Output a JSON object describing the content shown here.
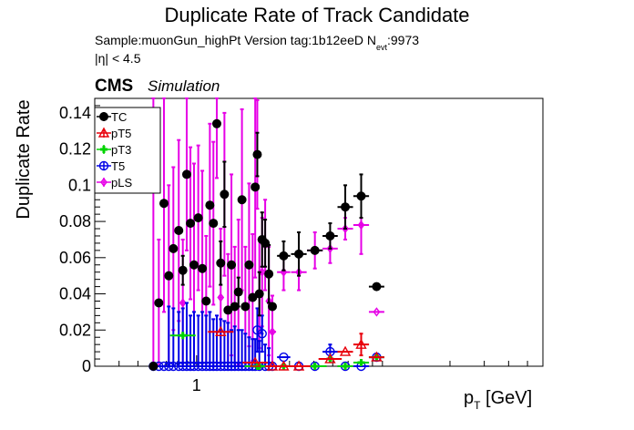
{
  "chart_data": {
    "type": "scatter",
    "title": "Duplicate Rate of Track Candidate",
    "subtitle": {
      "line1_main": "Sample:muonGun_highPt   Version tag:1b12eeD  N",
      "line1_sub": "evt",
      "line1_tail": ":9973",
      "line2": "|η| < 4.5"
    },
    "cms_label": "CMS",
    "cms_sublabel": "Simulation",
    "ylabel": "Duplicate Rate",
    "xlabel_main": "p",
    "xlabel_sub": "T",
    "xlabel_tail": " [GeV]",
    "x_scale": "log",
    "xlim": [
      0.3,
      60
    ],
    "ylim": [
      0,
      0.148
    ],
    "y_ticks": [
      0,
      0.02,
      0.04,
      0.06,
      0.08,
      0.1,
      0.12,
      0.14
    ],
    "y_tick_labels": [
      "0",
      "0.02",
      "0.04",
      "0.06",
      "0.08",
      "0.1",
      "0.12",
      "0.14"
    ],
    "x_ticks": [
      1
    ],
    "x_tick_labels": [
      "1"
    ],
    "legend_placement": "top-left",
    "colors": {
      "TC": "#000000",
      "pT5": "#e8000b",
      "pT3": "#00d400",
      "T5": "#0000e6",
      "pLS": "#e600e6"
    },
    "series": [
      {
        "name": "TC",
        "marker": "circle",
        "points": [
          {
            "x": 0.6,
            "y": 0.0,
            "err": 0.0
          },
          {
            "x": 0.64,
            "y": 0.035,
            "err": 0.0
          },
          {
            "x": 0.68,
            "y": 0.09,
            "err": 0.0
          },
          {
            "x": 0.72,
            "y": 0.05,
            "err": 0.0
          },
          {
            "x": 0.76,
            "y": 0.065,
            "err": 0.0
          },
          {
            "x": 0.81,
            "y": 0.075,
            "err": 0.0
          },
          {
            "x": 0.85,
            "y": 0.053,
            "err": 0.008
          },
          {
            "x": 0.89,
            "y": 0.106,
            "err": 0.0
          },
          {
            "x": 0.93,
            "y": 0.079,
            "err": 0.0
          },
          {
            "x": 0.97,
            "y": 0.056,
            "err": 0.0
          },
          {
            "x": 1.02,
            "y": 0.082,
            "err": 0.0
          },
          {
            "x": 1.07,
            "y": 0.054,
            "err": 0.0
          },
          {
            "x": 1.12,
            "y": 0.036,
            "err": 0.0
          },
          {
            "x": 1.17,
            "y": 0.089,
            "err": 0.0
          },
          {
            "x": 1.22,
            "y": 0.079,
            "err": 0.0
          },
          {
            "x": 1.27,
            "y": 0.134,
            "err": 0.0
          },
          {
            "x": 1.33,
            "y": 0.057,
            "err": 0.012
          },
          {
            "x": 1.39,
            "y": 0.095,
            "err": 0.018
          },
          {
            "x": 1.45,
            "y": 0.031,
            "err": 0.0
          },
          {
            "x": 1.51,
            "y": 0.056,
            "err": 0.0
          },
          {
            "x": 1.57,
            "y": 0.033,
            "err": 0.0
          },
          {
            "x": 1.64,
            "y": 0.041,
            "err": 0.008
          },
          {
            "x": 1.71,
            "y": 0.092,
            "err": 0.0
          },
          {
            "x": 1.78,
            "y": 0.033,
            "err": 0.0
          },
          {
            "x": 1.86,
            "y": 0.056,
            "err": 0.0
          },
          {
            "x": 1.94,
            "y": 0.038,
            "err": 0.0
          },
          {
            "x": 2.0,
            "y": 0.099,
            "err": 0.0
          },
          {
            "x": 2.05,
            "y": 0.117,
            "err": 0.012
          },
          {
            "x": 2.1,
            "y": 0.04,
            "err": 0.012
          },
          {
            "x": 2.17,
            "y": 0.07,
            "err": 0.015
          },
          {
            "x": 2.25,
            "y": 0.068,
            "err": 0.013
          },
          {
            "x": 2.35,
            "y": 0.051,
            "err": 0.016
          },
          {
            "x": 2.45,
            "y": 0.033,
            "err": 0.0
          },
          {
            "x": 2.8,
            "y": 0.061,
            "err": 0.008
          },
          {
            "x": 3.35,
            "y": 0.062,
            "err": 0.012
          },
          {
            "x": 4.05,
            "y": 0.064,
            "err": 0.0
          },
          {
            "x": 4.85,
            "y": 0.072,
            "err": 0.007
          },
          {
            "x": 5.8,
            "y": 0.088,
            "err": 0.012
          },
          {
            "x": 7.0,
            "y": 0.094,
            "err": 0.012
          },
          {
            "x": 8.4,
            "y": 0.044,
            "err": 0.0
          }
        ]
      },
      {
        "name": "pT5",
        "marker": "triangle",
        "points": [
          {
            "x": 1.33,
            "y": 0.019,
            "err": 0.0
          },
          {
            "x": 2.0,
            "y": 0.002,
            "err": 0.0
          },
          {
            "x": 2.45,
            "y": 0.0,
            "err": 0.0
          },
          {
            "x": 2.8,
            "y": 0.0,
            "err": 0.0
          },
          {
            "x": 3.35,
            "y": 0.0,
            "err": 0.0
          },
          {
            "x": 4.85,
            "y": 0.004,
            "err": 0.0
          },
          {
            "x": 5.8,
            "y": 0.008,
            "err": 0.0
          },
          {
            "x": 7.0,
            "y": 0.012,
            "err": 0.006
          },
          {
            "x": 8.4,
            "y": 0.005,
            "err": 0.0
          }
        ]
      },
      {
        "name": "pT3",
        "marker": "cross",
        "points": [
          {
            "x": 0.85,
            "y": 0.017,
            "err": 0.0
          },
          {
            "x": 2.05,
            "y": 0.0,
            "err": 0.0
          },
          {
            "x": 2.1,
            "y": 0.0,
            "err": 0.0
          },
          {
            "x": 2.8,
            "y": 0.0,
            "err": 0.0
          },
          {
            "x": 4.05,
            "y": 0.0,
            "err": 0.0
          },
          {
            "x": 4.85,
            "y": 0.004,
            "err": 0.0
          },
          {
            "x": 5.8,
            "y": 0.0,
            "err": 0.0
          },
          {
            "x": 7.0,
            "y": 0.002,
            "err": 0.0
          },
          {
            "x": 8.4,
            "y": 0.005,
            "err": 0.0
          }
        ]
      },
      {
        "name": "T5",
        "marker": "open-circle",
        "points": [
          {
            "x": 0.6,
            "y": 0.0,
            "err": 0.0
          },
          {
            "x": 0.64,
            "y": 0.0,
            "err": 0.0
          },
          {
            "x": 0.68,
            "y": 0.0,
            "err": 0.0
          },
          {
            "x": 0.72,
            "y": 0.0,
            "err": 0.033
          },
          {
            "x": 0.76,
            "y": 0.0,
            "err": 0.032
          },
          {
            "x": 0.81,
            "y": 0.0,
            "err": 0.03
          },
          {
            "x": 0.85,
            "y": 0.0,
            "err": 0.032
          },
          {
            "x": 0.89,
            "y": 0.0,
            "err": 0.035
          },
          {
            "x": 0.93,
            "y": 0.0,
            "err": 0.028
          },
          {
            "x": 0.97,
            "y": 0.0,
            "err": 0.03
          },
          {
            "x": 1.02,
            "y": 0.0,
            "err": 0.028
          },
          {
            "x": 1.07,
            "y": 0.0,
            "err": 0.03
          },
          {
            "x": 1.12,
            "y": 0.0,
            "err": 0.028
          },
          {
            "x": 1.17,
            "y": 0.0,
            "err": 0.03
          },
          {
            "x": 1.22,
            "y": 0.0,
            "err": 0.026
          },
          {
            "x": 1.27,
            "y": 0.0,
            "err": 0.028
          },
          {
            "x": 1.33,
            "y": 0.0,
            "err": 0.026
          },
          {
            "x": 1.39,
            "y": 0.0,
            "err": 0.025
          },
          {
            "x": 1.45,
            "y": 0.0,
            "err": 0.024
          },
          {
            "x": 1.51,
            "y": 0.0,
            "err": 0.02
          },
          {
            "x": 1.57,
            "y": 0.0,
            "err": 0.022
          },
          {
            "x": 1.64,
            "y": 0.0,
            "err": 0.02
          },
          {
            "x": 1.71,
            "y": 0.0,
            "err": 0.02
          },
          {
            "x": 1.78,
            "y": 0.0,
            "err": 0.018
          },
          {
            "x": 1.86,
            "y": 0.0,
            "err": 0.016
          },
          {
            "x": 1.94,
            "y": 0.0,
            "err": 0.015
          },
          {
            "x": 2.0,
            "y": 0.0,
            "err": 0.015
          },
          {
            "x": 2.05,
            "y": 0.02,
            "err": 0.012
          },
          {
            "x": 2.1,
            "y": 0.0,
            "err": 0.014
          },
          {
            "x": 2.17,
            "y": 0.018,
            "err": 0.01
          },
          {
            "x": 2.25,
            "y": 0.0,
            "err": 0.012
          },
          {
            "x": 2.35,
            "y": 0.0,
            "err": 0.01
          },
          {
            "x": 2.45,
            "y": 0.0,
            "err": 0.0
          },
          {
            "x": 2.8,
            "y": 0.005,
            "err": 0.0
          },
          {
            "x": 3.35,
            "y": 0.0,
            "err": 0.0
          },
          {
            "x": 4.05,
            "y": 0.0,
            "err": 0.0
          },
          {
            "x": 4.85,
            "y": 0.008,
            "err": 0.004
          },
          {
            "x": 5.8,
            "y": 0.0,
            "err": 0.0
          },
          {
            "x": 7.0,
            "y": 0.0,
            "err": 0.0
          },
          {
            "x": 8.4,
            "y": 0.005,
            "err": 0.0
          }
        ]
      },
      {
        "name": "pLS",
        "marker": "diamond",
        "points": [
          {
            "x": 0.6,
            "y": 0.0,
            "err": 0.148
          },
          {
            "x": 0.64,
            "y": 0.035,
            "err": 0.035
          },
          {
            "x": 0.68,
            "y": 0.09,
            "err": 0.06
          },
          {
            "x": 0.72,
            "y": 0.05,
            "err": 0.05
          },
          {
            "x": 0.76,
            "y": 0.065,
            "err": 0.045
          },
          {
            "x": 0.81,
            "y": 0.075,
            "err": 0.05
          },
          {
            "x": 0.85,
            "y": 0.035,
            "err": 0.035
          },
          {
            "x": 0.89,
            "y": 0.106,
            "err": 0.042
          },
          {
            "x": 0.93,
            "y": 0.079,
            "err": 0.042
          },
          {
            "x": 0.97,
            "y": 0.056,
            "err": 0.056
          },
          {
            "x": 1.02,
            "y": 0.082,
            "err": 0.04
          },
          {
            "x": 1.07,
            "y": 0.054,
            "err": 0.054
          },
          {
            "x": 1.12,
            "y": 0.036,
            "err": 0.036
          },
          {
            "x": 1.17,
            "y": 0.089,
            "err": 0.045
          },
          {
            "x": 1.22,
            "y": 0.079,
            "err": 0.045
          },
          {
            "x": 1.27,
            "y": 0.134,
            "err": 0.03
          },
          {
            "x": 1.33,
            "y": 0.038,
            "err": 0.038
          },
          {
            "x": 1.39,
            "y": 0.095,
            "err": 0.045
          },
          {
            "x": 1.45,
            "y": 0.031,
            "err": 0.031
          },
          {
            "x": 1.51,
            "y": 0.056,
            "err": 0.05
          },
          {
            "x": 1.57,
            "y": 0.033,
            "err": 0.033
          },
          {
            "x": 1.64,
            "y": 0.041,
            "err": 0.04
          },
          {
            "x": 1.71,
            "y": 0.092,
            "err": 0.05
          },
          {
            "x": 1.78,
            "y": 0.033,
            "err": 0.033
          },
          {
            "x": 1.86,
            "y": 0.056,
            "err": 0.045
          },
          {
            "x": 1.94,
            "y": 0.038,
            "err": 0.035
          },
          {
            "x": 2.0,
            "y": 0.099,
            "err": 0.05
          },
          {
            "x": 2.05,
            "y": 0.117,
            "err": 0.03
          },
          {
            "x": 2.1,
            "y": 0.04,
            "err": 0.03
          },
          {
            "x": 2.17,
            "y": 0.052,
            "err": 0.03
          },
          {
            "x": 2.25,
            "y": 0.067,
            "err": 0.025
          },
          {
            "x": 2.35,
            "y": 0.036,
            "err": 0.03
          },
          {
            "x": 2.45,
            "y": 0.019,
            "err": 0.02
          },
          {
            "x": 2.8,
            "y": 0.052,
            "err": 0.01
          },
          {
            "x": 3.35,
            "y": 0.052,
            "err": 0.01
          },
          {
            "x": 4.05,
            "y": 0.064,
            "err": 0.01
          },
          {
            "x": 4.85,
            "y": 0.065,
            "err": 0.008
          },
          {
            "x": 5.8,
            "y": 0.076,
            "err": 0.006
          },
          {
            "x": 7.0,
            "y": 0.078,
            "err": 0.016
          },
          {
            "x": 8.4,
            "y": 0.03,
            "err": 0.0
          }
        ]
      }
    ]
  }
}
